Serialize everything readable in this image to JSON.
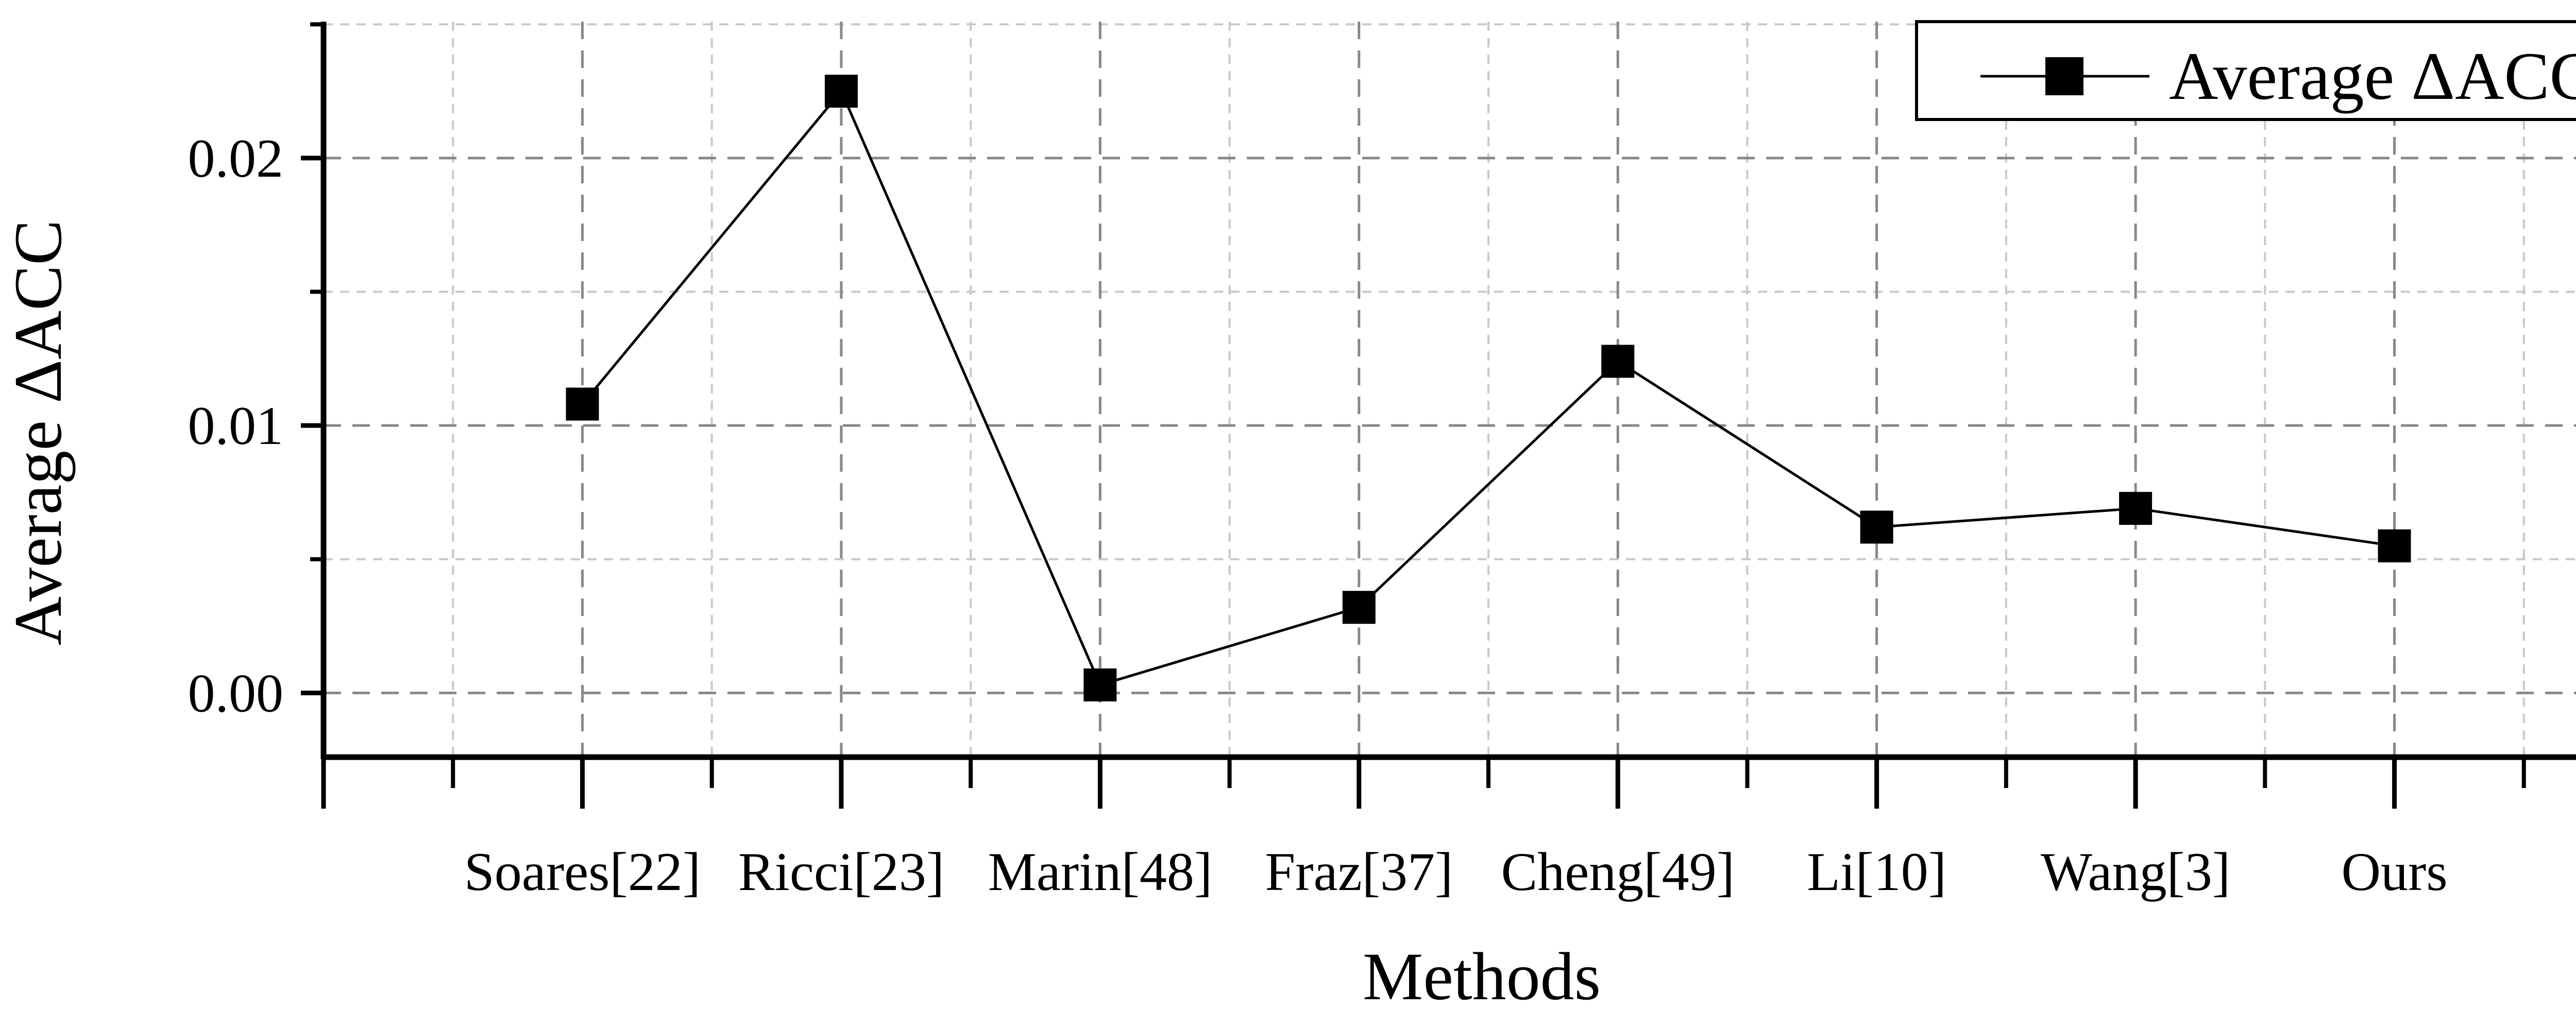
{
  "chart_data": {
    "type": "line",
    "title": "",
    "xlabel": "Methods",
    "ylabel": "Average ΔACC",
    "categories": [
      "Soares[22]",
      "Ricci[23]",
      "Marin[48]",
      "Fraz[37]",
      "Cheng[49]",
      "Li[10]",
      "Wang[3]",
      "Ours"
    ],
    "series": [
      {
        "name": "Average ΔACC",
        "values": [
          0.0108,
          0.0225,
          0.0003,
          0.0032,
          0.0124,
          0.0062,
          0.0069,
          0.0055
        ],
        "marker": "square",
        "color": "#000000"
      }
    ],
    "ylim": [
      -0.0024,
      0.0251
    ],
    "yticks": [
      0.0,
      0.01,
      0.02
    ],
    "ytick_labels": [
      "0.00",
      "0.01",
      "0.02"
    ],
    "grid": true,
    "legend_position": "top-right"
  }
}
